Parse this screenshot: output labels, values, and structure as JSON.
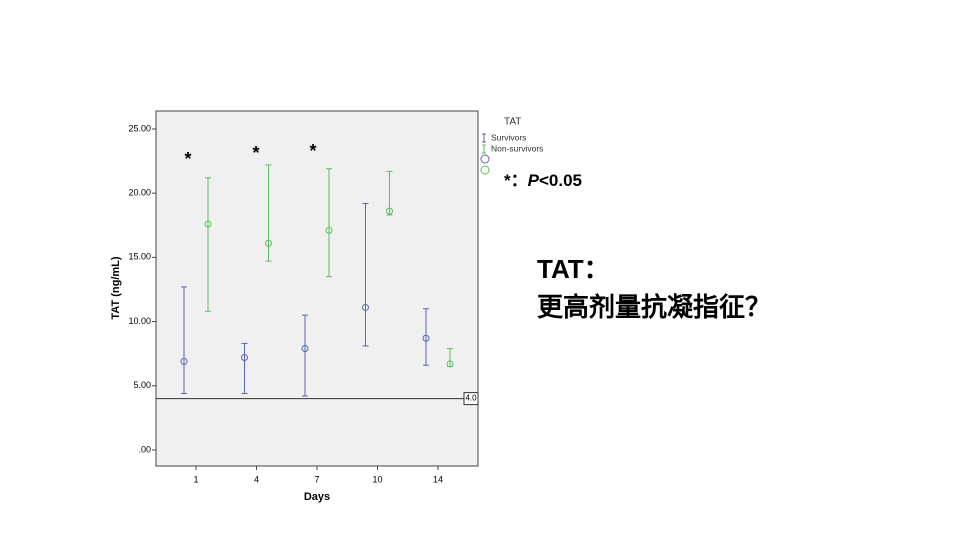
{
  "chart_data": {
    "type": "errorbar",
    "y_label": "TAT (ng/mL)",
    "x_label": "Days",
    "categories": [
      "1",
      "4",
      "7",
      "10",
      "14"
    ],
    "ylim": [
      -1.25,
      26.4
    ],
    "yticks": [
      {
        "value": 25,
        "label": "25.00"
      },
      {
        "value": 20,
        "label": "20.00"
      },
      {
        "value": 15,
        "label": "15.00"
      },
      {
        "value": 10,
        "label": "10.00"
      },
      {
        "value": 5,
        "label": "5.00"
      },
      {
        "value": 0,
        "label": ".00"
      }
    ],
    "legend_title": "TAT",
    "series": [
      {
        "name": "Survivors",
        "color": "#5965b8",
        "values": [
          6.9,
          7.2,
          7.9,
          11.1,
          8.7
        ],
        "lower": [
          4.4,
          4.4,
          4.2,
          8.1,
          6.6
        ],
        "upper": [
          12.7,
          8.3,
          10.5,
          19.2,
          11.0
        ]
      },
      {
        "name": "Non-survivors",
        "color": "#5cbf5c",
        "values": [
          17.6,
          16.1,
          17.1,
          18.6,
          6.7
        ],
        "lower": [
          10.8,
          14.7,
          13.5,
          18.3,
          6.5
        ],
        "upper": [
          21.2,
          22.2,
          21.9,
          21.7,
          7.9
        ]
      }
    ],
    "reference_line": {
      "value": 4,
      "label": "4.0"
    },
    "annotations": [
      "*",
      "*",
      "*"
    ],
    "significance_note": {
      "marker": "*：",
      "symbol": "P",
      "text": "<0.05"
    }
  },
  "slide": {
    "heading": "TAT：",
    "text": "更高剂量抗凝指征？"
  }
}
